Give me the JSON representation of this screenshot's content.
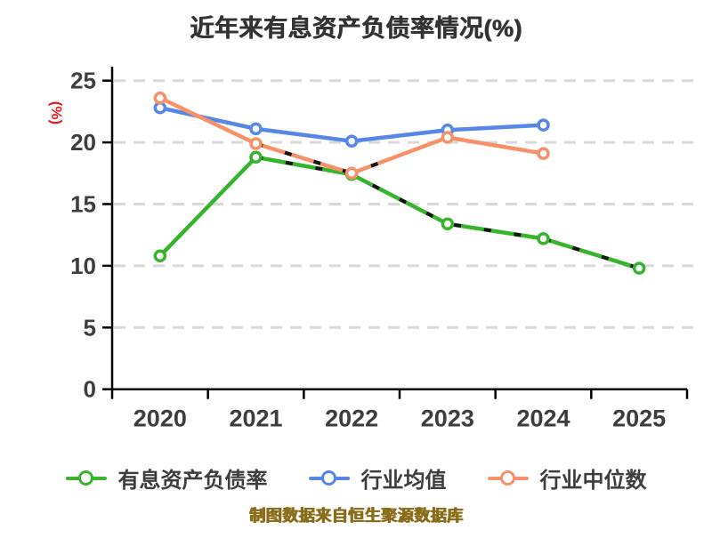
{
  "title": "近年来有息资产负债率情况(%)",
  "y_axis_unit": "(%)",
  "footer_note": "制图数据来自恒生聚源数据库",
  "colors": {
    "title": "#333333",
    "y_unit_label": "#ec1c24",
    "tick_label": "#3d3d3d",
    "axis": "#000000",
    "grid": "#d9d9d9",
    "overlay_dash": "#141414",
    "footer": "#8a6d1a",
    "marker_fill": "#ffffff"
  },
  "chart_data": {
    "type": "line",
    "title": "近年来有息资产负债率情况(%)",
    "xlabel": "",
    "ylabel": "(%)",
    "categories": [
      "2020",
      "2021",
      "2022",
      "2023",
      "2024",
      "2025"
    ],
    "series": [
      {
        "name": "有息资产负债率",
        "color": "#35b42c",
        "values": [
          10.8,
          18.8,
          17.4,
          13.4,
          12.2,
          9.8
        ]
      },
      {
        "name": "行业均值",
        "color": "#5586e8",
        "values": [
          22.8,
          21.1,
          20.1,
          21.0,
          21.4,
          null
        ]
      },
      {
        "name": "行业中位数",
        "color": "#f89069",
        "values": [
          23.6,
          19.9,
          17.5,
          20.4,
          19.1,
          null
        ]
      }
    ],
    "ylim": [
      0,
      25
    ],
    "yticks": [
      0,
      5,
      10,
      15,
      20,
      25
    ],
    "grid": "horizontal-dashed",
    "legend_position": "bottom",
    "overlay_dash_segments": [
      {
        "series": 0,
        "from": 1,
        "to": 5,
        "extend": 0
      },
      {
        "series": 2,
        "from": 1,
        "to": 2,
        "extend": 0.37
      }
    ]
  }
}
